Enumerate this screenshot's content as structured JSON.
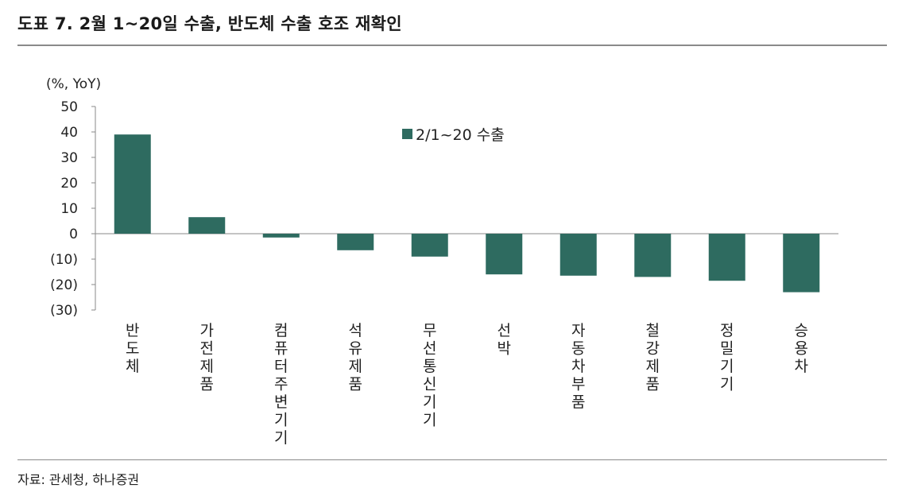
{
  "title": "도표 7. 2월 1~20일 수출, 반도체 수출 호조 재확인",
  "source": "자료: 관세청, 하나증권",
  "colors": {
    "bar": "#2e6b60",
    "axis": "#8a8a8a",
    "rule": "#8a8a8a"
  },
  "chart_data": {
    "type": "bar",
    "unit_label": "(%, YoY)",
    "categories": [
      "반도체",
      "가전제품",
      "컴퓨터주변기기",
      "석유제품",
      "무선통신기기",
      "선박",
      "자동차부품",
      "철강제품",
      "정밀기기",
      "승용차"
    ],
    "series": [
      {
        "name": "2/1~20 수출",
        "values": [
          39,
          6.5,
          -1.5,
          -6.5,
          -9,
          -16,
          -16.5,
          -17,
          -18.5,
          -23
        ]
      }
    ],
    "ylim": [
      -30,
      50
    ],
    "yticks": [
      50,
      40,
      30,
      20,
      10,
      0,
      -10,
      -20,
      -30
    ],
    "ytick_labels": [
      "50",
      "40",
      "30",
      "20",
      "10",
      "0",
      "(10)",
      "(20)",
      "(30)"
    ],
    "grid": false,
    "legend": "top-center"
  }
}
